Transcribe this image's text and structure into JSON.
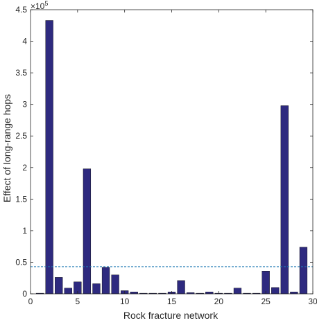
{
  "chart_data": {
    "type": "bar",
    "title": "",
    "xlabel": "Rock fracture network",
    "ylabel": "Effect of long-range hops",
    "y_exponent_base": "×10",
    "y_exponent_power": "5",
    "y_scale_factor": 100000,
    "xlim": [
      0,
      30
    ],
    "ylim": [
      0,
      4.5
    ],
    "x_ticks": [
      0,
      5,
      10,
      15,
      20,
      25,
      30
    ],
    "y_ticks": [
      0,
      0.5,
      1,
      1.5,
      2,
      2.5,
      3,
      3.5,
      4,
      4.5
    ],
    "x_tick_labels": [
      "0",
      "5",
      "10",
      "15",
      "20",
      "25",
      "30"
    ],
    "y_tick_labels": [
      "0",
      "0.5",
      "1",
      "1.5",
      "2",
      "2.5",
      "3",
      "3.5",
      "4",
      "4.5"
    ],
    "grid": false,
    "bar_color": "#2e2a7f",
    "reference_line": {
      "y": 0.43,
      "color": "#1f77b4",
      "style": "dashed"
    },
    "x": [
      1,
      2,
      3,
      4,
      5,
      6,
      7,
      8,
      9,
      10,
      11,
      12,
      13,
      14,
      15,
      16,
      17,
      18,
      19,
      20,
      21,
      22,
      23,
      24,
      25,
      26,
      27,
      28,
      29
    ],
    "values": [
      0.01,
      4.33,
      0.26,
      0.09,
      0.19,
      1.98,
      0.16,
      0.42,
      0.3,
      0.05,
      0.03,
      0.01,
      0.01,
      0.01,
      0.03,
      0.21,
      0.02,
      0.01,
      0.03,
      0.01,
      0.01,
      0.09,
      0.01,
      0.01,
      0.36,
      0.1,
      2.98,
      0.03,
      0.74
    ]
  }
}
